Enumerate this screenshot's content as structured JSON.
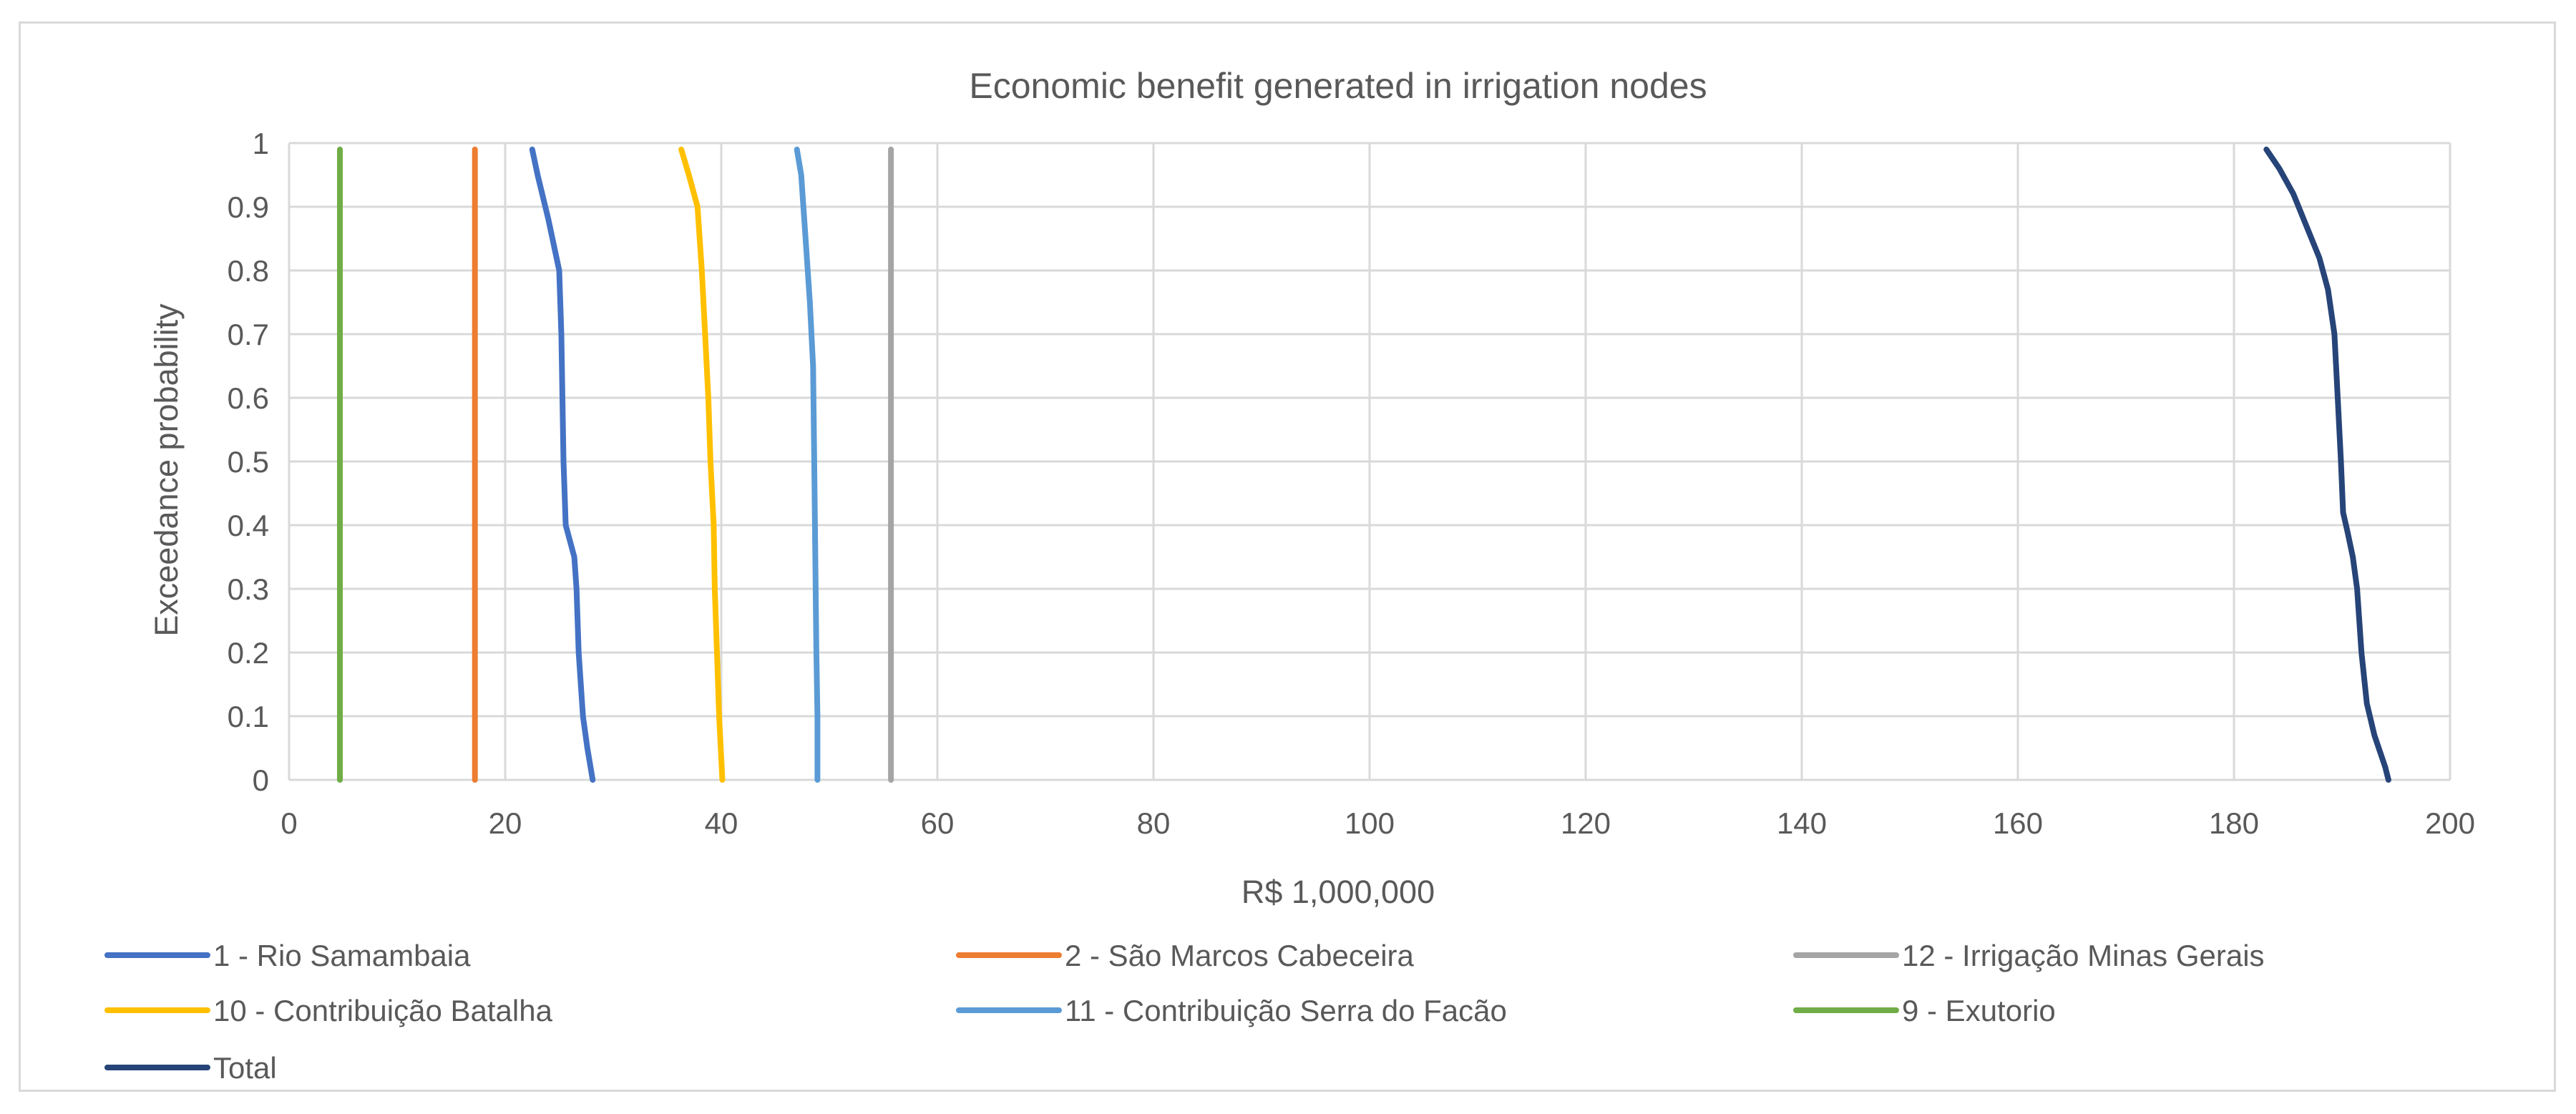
{
  "chart_data": {
    "type": "line",
    "title": "Economic benefit generated in irrigation nodes",
    "xlabel": "R$ 1,000,000",
    "ylabel": "Exceedance probability",
    "xlim": [
      0,
      200
    ],
    "ylim": [
      0,
      1
    ],
    "xticks": [
      "0",
      "20",
      "40",
      "60",
      "80",
      "100",
      "120",
      "140",
      "160",
      "180",
      "200"
    ],
    "yticks": [
      "0",
      "0.1",
      "0.2",
      "0.3",
      "0.4",
      "0.5",
      "0.6",
      "0.7",
      "0.8",
      "0.9",
      "1"
    ],
    "grid": true,
    "legend_position": "bottom",
    "series": [
      {
        "name": "1 - Rio Samambaia",
        "color": "#4472c4",
        "points": [
          [
            22.5,
            0.99
          ],
          [
            23,
            0.95
          ],
          [
            24,
            0.88
          ],
          [
            25,
            0.8
          ],
          [
            25.2,
            0.7
          ],
          [
            25.3,
            0.6
          ],
          [
            25.4,
            0.5
          ],
          [
            25.6,
            0.4
          ],
          [
            26.4,
            0.35
          ],
          [
            26.6,
            0.3
          ],
          [
            26.8,
            0.2
          ],
          [
            27.2,
            0.1
          ],
          [
            27.6,
            0.05
          ],
          [
            28.1,
            0
          ]
        ]
      },
      {
        "name": "2 - São Marcos Cabeceira",
        "color": "#ed7d31",
        "points": [
          [
            17.2,
            0.99
          ],
          [
            17.2,
            0
          ]
        ]
      },
      {
        "name": "12 - Irrigação Minas Gerais",
        "color": "#a5a5a5",
        "points": [
          [
            55.7,
            0.99
          ],
          [
            55.7,
            0
          ]
        ]
      },
      {
        "name": "10 - Contribuição Batalha",
        "color": "#ffc000",
        "points": [
          [
            36.3,
            0.99
          ],
          [
            37,
            0.95
          ],
          [
            37.8,
            0.9
          ],
          [
            38.2,
            0.8
          ],
          [
            38.5,
            0.7
          ],
          [
            38.8,
            0.6
          ],
          [
            39,
            0.5
          ],
          [
            39.3,
            0.4
          ],
          [
            39.4,
            0.3
          ],
          [
            39.6,
            0.2
          ],
          [
            39.8,
            0.1
          ],
          [
            40.1,
            0
          ]
        ]
      },
      {
        "name": "11 - Contribuição Serra do Facão",
        "color": "#5b9bd5",
        "points": [
          [
            47,
            0.99
          ],
          [
            47.4,
            0.95
          ],
          [
            47.8,
            0.85
          ],
          [
            48.2,
            0.75
          ],
          [
            48.5,
            0.65
          ],
          [
            48.6,
            0.5
          ],
          [
            48.7,
            0.35
          ],
          [
            48.8,
            0.2
          ],
          [
            48.9,
            0.1
          ],
          [
            48.9,
            0
          ]
        ]
      },
      {
        "name": "9 - Exutorio",
        "color": "#70ad47",
        "points": [
          [
            4.7,
            0.99
          ],
          [
            4.7,
            0
          ]
        ]
      },
      {
        "name": "Total",
        "color": "#264478",
        "points": [
          [
            183,
            0.99
          ],
          [
            184.2,
            0.96
          ],
          [
            185.5,
            0.92
          ],
          [
            186.7,
            0.87
          ],
          [
            187.9,
            0.82
          ],
          [
            188.7,
            0.77
          ],
          [
            189.3,
            0.7
          ],
          [
            189.6,
            0.6
          ],
          [
            189.9,
            0.5
          ],
          [
            190.1,
            0.42
          ],
          [
            190.5,
            0.39
          ],
          [
            191,
            0.35
          ],
          [
            191.4,
            0.3
          ],
          [
            191.8,
            0.2
          ],
          [
            192.3,
            0.12
          ],
          [
            193,
            0.07
          ],
          [
            194,
            0.02
          ],
          [
            194.3,
            0
          ]
        ]
      }
    ]
  }
}
